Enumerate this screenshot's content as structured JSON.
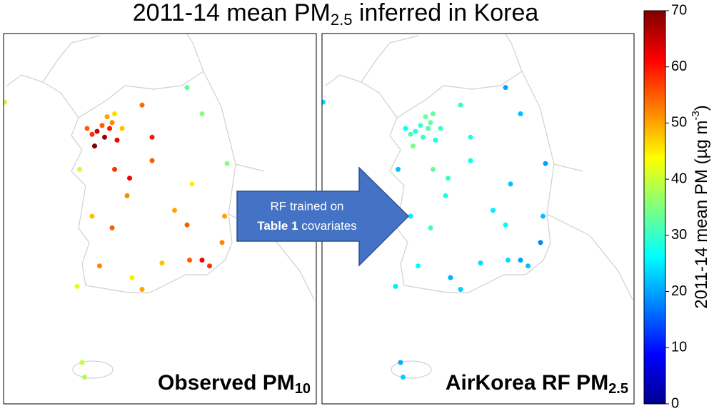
{
  "title": {
    "main": "2011-14 mean PM",
    "sub": "2.5",
    "rest": " inferred in Korea"
  },
  "panels": [
    {
      "label": "Observed PM",
      "sub": "10",
      "field": "pm10"
    },
    {
      "label": "AirKorea RF PM",
      "sub": "2.5",
      "field": "pm25"
    }
  ],
  "arrow": {
    "line1": "RF trained on",
    "bold": "Table 1",
    "rest": " covariates"
  },
  "colorbar": {
    "label": "2011-14 mean PM (µg m",
    "sup": "-3",
    "close": ")",
    "lim": [
      0,
      70
    ],
    "ticks": [
      0,
      10,
      20,
      30,
      40,
      50,
      60,
      70
    ],
    "colormap": "jet"
  },
  "stations": {
    "lon": [
      126.9,
      127.05,
      126.8,
      127.1,
      126.7,
      127.2,
      126.95,
      127.0,
      126.6,
      127.3,
      126.75,
      127.15,
      127.7,
      127.9,
      128.9,
      128.6,
      127.45,
      127.4,
      127.15,
      126.45,
      127.1,
      126.7,
      126.85,
      126.4,
      127.7,
      127.5,
      128.6,
      128.35,
      128.7,
      129.35,
      129.3,
      129.05,
      128.9,
      128.65,
      128.1,
      126.5,
      126.55,
      129.4,
      127.9,
      124.95
    ],
    "lat": [
      37.55,
      37.5,
      37.45,
      37.6,
      37.4,
      37.3,
      37.35,
      37.7,
      37.5,
      37.5,
      37.2,
      37.75,
      37.9,
      37.35,
      37.75,
      38.2,
      36.65,
      36.35,
      36.8,
      36.8,
      35.8,
      36.0,
      35.15,
      34.8,
      34.75,
      34.95,
      35.85,
      36.1,
      36.55,
      36.0,
      35.55,
      35.15,
      35.25,
      35.25,
      35.2,
      33.5,
      33.25,
      36.9,
      36.95,
      37.95
    ],
    "pm10": [
      55,
      60,
      65,
      52,
      58,
      62,
      68,
      50,
      55,
      48,
      70,
      46,
      54,
      60,
      35,
      33,
      62,
      52,
      58,
      40,
      55,
      48,
      52,
      42,
      50,
      45,
      55,
      50,
      45,
      50,
      52,
      58,
      62,
      55,
      48,
      40,
      38,
      35,
      55,
      40
    ],
    "pm25": [
      30,
      32,
      29,
      33,
      31,
      28,
      30,
      34,
      27,
      30,
      35,
      33,
      30,
      28,
      22,
      20,
      30,
      28,
      33,
      22,
      30,
      25,
      26,
      25,
      23,
      21,
      26,
      25,
      22,
      22,
      18,
      22,
      20,
      24,
      24,
      21,
      23,
      20,
      27,
      24
    ]
  }
}
